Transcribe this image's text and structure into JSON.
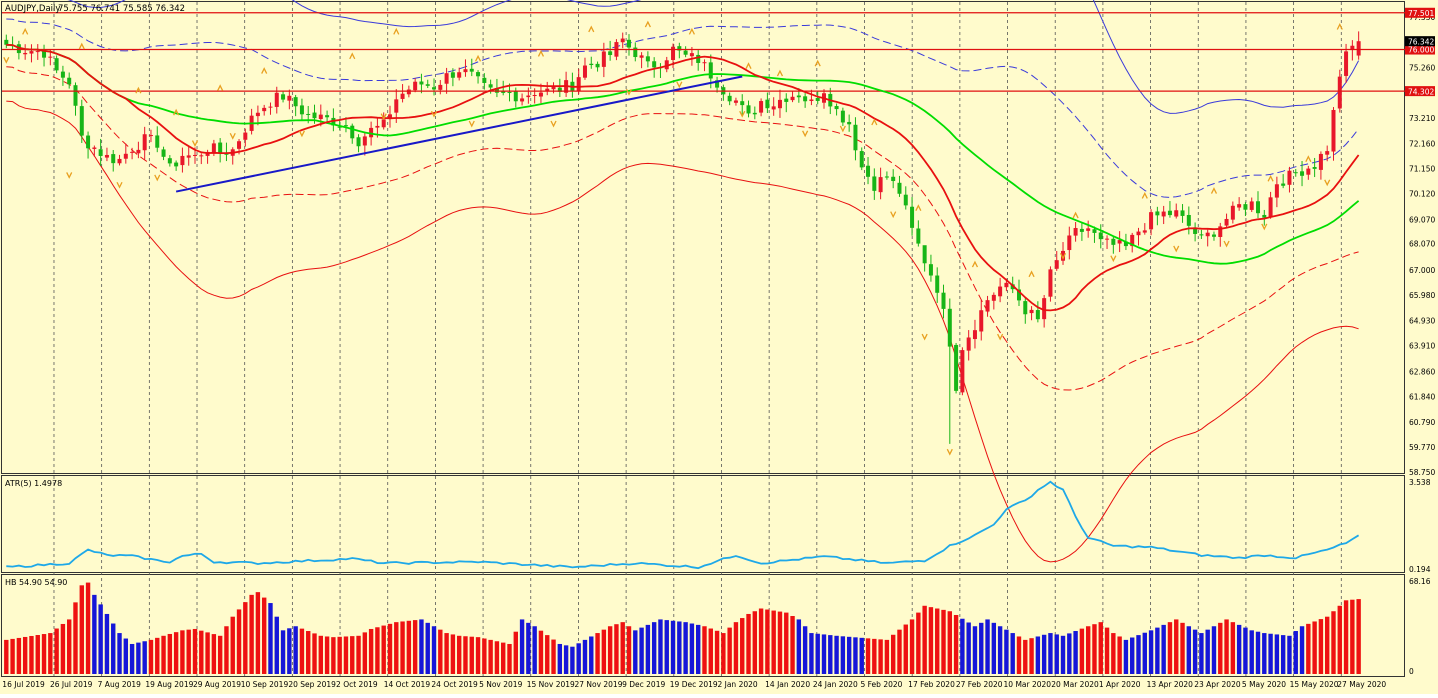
{
  "window": {
    "title": "AUDJPY,Daily",
    "ohlc": "75.755 76.741 75.585 76.342"
  },
  "colors": {
    "background": "#FFFBCC",
    "grid": "#555555",
    "bull_candle": "#E8172A",
    "bear_candle": "#17B517",
    "ma_green": "#00DD00",
    "ma_red": "#E81010",
    "envelope_blue": "#3A3ADA",
    "envelope_red": "#E81010",
    "trendline": "#1818C8",
    "hline": "#E01010",
    "atr_line": "#1EA8E8",
    "hist_red": "#EE1111",
    "hist_blue": "#1616D8",
    "fractal": "#E8A020"
  },
  "price_panel": {
    "ticks": [
      "77.330",
      "76.280",
      "75.260",
      "74.230",
      "73.210",
      "72.160",
      "71.150",
      "70.120",
      "69.070",
      "68.070",
      "67.000",
      "65.980",
      "64.930",
      "63.910",
      "62.860",
      "61.840",
      "60.790",
      "59.770",
      "58.750"
    ],
    "levels": [
      {
        "value": 77.501,
        "label": "77.501"
      },
      {
        "value": 76.0,
        "label": "76.000"
      },
      {
        "value": 74.302,
        "label": "74.302"
      }
    ],
    "current_price": {
      "value": 76.342,
      "label": "76.342"
    }
  },
  "atr_panel": {
    "label": "ATR(5) 1.4978",
    "top_tick": "3.538",
    "bottom_tick": "0.194"
  },
  "hist_panel": {
    "label": "HB 54.90 54.90",
    "top_tick": "68.16",
    "bottom_tick": "0"
  },
  "dates": [
    "16 Jul 2019",
    "26 Jul 2019",
    "7 Aug 2019",
    "19 Aug 2019",
    "29 Aug 2019",
    "10 Sep 2019",
    "20 Sep 2019",
    "2 Oct 2019",
    "14 Oct 2019",
    "24 Oct 2019",
    "5 Nov 2019",
    "15 Nov 2019",
    "27 Nov 2019",
    "9 Dec 2019",
    "19 Dec 2019",
    "2 Jan 2020",
    "14 Jan 2020",
    "24 Jan 2020",
    "5 Feb 2020",
    "17 Feb 2020",
    "27 Feb 2020",
    "10 Mar 2020",
    "20 Mar 2020",
    "1 Apr 2020",
    "13 Apr 2020",
    "23 Apr 2020",
    "5 May 2020",
    "15 May 2020",
    "27 May 2020"
  ],
  "chart_data": {
    "type": "candlestick",
    "symbol": "AUDJPY",
    "timeframe": "Daily",
    "ylim": [
      58.75,
      77.9
    ],
    "close_anchors": [
      [
        0,
        76.2
      ],
      [
        3,
        76.0
      ],
      [
        6,
        75.9
      ],
      [
        8,
        75.1
      ],
      [
        10,
        74.7
      ],
      [
        12,
        72.4
      ],
      [
        14,
        72.0
      ],
      [
        16,
        71.6
      ],
      [
        18,
        71.5
      ],
      [
        20,
        72.0
      ],
      [
        22,
        72.3
      ],
      [
        24,
        72.2
      ],
      [
        26,
        71.1
      ],
      [
        28,
        71.7
      ],
      [
        30,
        71.6
      ],
      [
        32,
        72.0
      ],
      [
        34,
        71.8
      ],
      [
        36,
        71.9
      ],
      [
        38,
        72.8
      ],
      [
        40,
        73.5
      ],
      [
        42,
        73.9
      ],
      [
        44,
        74.1
      ],
      [
        46,
        73.7
      ],
      [
        48,
        73.3
      ],
      [
        50,
        73.2
      ],
      [
        52,
        73.1
      ],
      [
        54,
        72.9
      ],
      [
        56,
        72.3
      ],
      [
        58,
        72.7
      ],
      [
        60,
        72.9
      ],
      [
        62,
        74.0
      ],
      [
        64,
        74.4
      ],
      [
        66,
        74.6
      ],
      [
        68,
        74.5
      ],
      [
        70,
        74.9
      ],
      [
        72,
        75.2
      ],
      [
        74,
        74.9
      ],
      [
        76,
        74.4
      ],
      [
        78,
        74.1
      ],
      [
        80,
        74.2
      ],
      [
        82,
        74.1
      ],
      [
        84,
        74.3
      ],
      [
        86,
        74.3
      ],
      [
        88,
        74.4
      ],
      [
        90,
        74.6
      ],
      [
        92,
        75.3
      ],
      [
        94,
        75.5
      ],
      [
        96,
        75.8
      ],
      [
        98,
        76.4
      ],
      [
        99,
        76.1
      ],
      [
        100,
        75.9
      ],
      [
        102,
        75.3
      ],
      [
        104,
        75.5
      ],
      [
        106,
        76.0
      ],
      [
        108,
        75.7
      ],
      [
        110,
        75.6
      ],
      [
        112,
        75.0
      ],
      [
        114,
        74.4
      ],
      [
        116,
        73.9
      ],
      [
        118,
        73.2
      ],
      [
        120,
        73.9
      ],
      [
        122,
        73.8
      ],
      [
        124,
        74.1
      ],
      [
        126,
        74.2
      ],
      [
        128,
        73.8
      ],
      [
        130,
        74.4
      ],
      [
        132,
        73.5
      ],
      [
        134,
        73.0
      ],
      [
        136,
        71.2
      ],
      [
        138,
        70.5
      ],
      [
        140,
        70.8
      ],
      [
        142,
        70.2
      ],
      [
        144,
        68.6
      ],
      [
        146,
        67.4
      ],
      [
        148,
        66.3
      ],
      [
        150,
        64.1
      ],
      [
        151,
        62.3
      ],
      [
        152,
        63.9
      ],
      [
        154,
        64.8
      ],
      [
        156,
        65.8
      ],
      [
        158,
        66.3
      ],
      [
        160,
        66.2
      ],
      [
        162,
        65.4
      ],
      [
        164,
        64.9
      ],
      [
        166,
        66.8
      ],
      [
        168,
        67.8
      ],
      [
        170,
        68.5
      ],
      [
        172,
        68.7
      ],
      [
        174,
        68.1
      ],
      [
        176,
        68.0
      ],
      [
        178,
        67.9
      ],
      [
        180,
        68.6
      ],
      [
        182,
        69.1
      ],
      [
        184,
        69.3
      ],
      [
        186,
        69.3
      ],
      [
        188,
        68.8
      ],
      [
        190,
        68.2
      ],
      [
        192,
        68.6
      ],
      [
        194,
        69.1
      ],
      [
        196,
        69.6
      ],
      [
        198,
        69.7
      ],
      [
        200,
        69.3
      ],
      [
        202,
        70.6
      ],
      [
        204,
        70.8
      ],
      [
        206,
        71.1
      ],
      [
        208,
        71.3
      ],
      [
        210,
        72.0
      ],
      [
        211,
        73.4
      ],
      [
        212,
        75.0
      ],
      [
        213,
        75.7
      ],
      [
        214,
        76.1
      ],
      [
        215,
        76.34
      ]
    ],
    "atr": {
      "name": "ATR(5)",
      "last": 1.4978,
      "ylim": [
        0.194,
        3.538
      ],
      "anchors": [
        [
          0,
          0.3
        ],
        [
          10,
          0.45
        ],
        [
          13,
          0.95
        ],
        [
          16,
          0.75
        ],
        [
          20,
          0.72
        ],
        [
          24,
          0.55
        ],
        [
          26,
          0.5
        ],
        [
          28,
          0.72
        ],
        [
          31,
          0.8
        ],
        [
          33,
          0.5
        ],
        [
          40,
          0.45
        ],
        [
          55,
          0.62
        ],
        [
          60,
          0.45
        ],
        [
          75,
          0.5
        ],
        [
          90,
          0.3
        ],
        [
          100,
          0.45
        ],
        [
          110,
          0.3
        ],
        [
          116,
          0.75
        ],
        [
          120,
          0.45
        ],
        [
          130,
          0.7
        ],
        [
          140,
          0.45
        ],
        [
          146,
          0.55
        ],
        [
          150,
          1.1
        ],
        [
          154,
          1.5
        ],
        [
          157,
          1.9
        ],
        [
          159,
          2.5
        ],
        [
          162,
          2.8
        ],
        [
          164,
          3.2
        ],
        [
          166,
          3.5
        ],
        [
          168,
          3.2
        ],
        [
          170,
          2.2
        ],
        [
          172,
          1.4
        ],
        [
          176,
          1.1
        ],
        [
          182,
          1.05
        ],
        [
          190,
          0.75
        ],
        [
          196,
          0.65
        ],
        [
          200,
          0.75
        ],
        [
          205,
          0.65
        ],
        [
          210,
          0.95
        ],
        [
          213,
          1.2
        ],
        [
          215,
          1.4978
        ]
      ]
    },
    "hist": {
      "name": "HB",
      "values_label": "54.90 54.90",
      "last": 54.9,
      "ylim": [
        0,
        68.16
      ],
      "anchors": [
        [
          0,
          25
        ],
        [
          7,
          30
        ],
        [
          10,
          40
        ],
        [
          12,
          65
        ],
        [
          13,
          67
        ],
        [
          14,
          58
        ],
        [
          18,
          30
        ],
        [
          20,
          22
        ],
        [
          23,
          25
        ],
        [
          25,
          28
        ],
        [
          28,
          32
        ],
        [
          30,
          33
        ],
        [
          34,
          28
        ],
        [
          36,
          42
        ],
        [
          39,
          58
        ],
        [
          40,
          60
        ],
        [
          42,
          52
        ],
        [
          44,
          32
        ],
        [
          46,
          35
        ],
        [
          50,
          28
        ],
        [
          52,
          27
        ],
        [
          56,
          28
        ],
        [
          58,
          33
        ],
        [
          62,
          38
        ],
        [
          66,
          40
        ],
        [
          70,
          30
        ],
        [
          72,
          28
        ],
        [
          75,
          27
        ],
        [
          80,
          22
        ],
        [
          82,
          40
        ],
        [
          84,
          35
        ],
        [
          88,
          22
        ],
        [
          90,
          20
        ],
        [
          94,
          30
        ],
        [
          96,
          35
        ],
        [
          98,
          38
        ],
        [
          100,
          32
        ],
        [
          104,
          40
        ],
        [
          108,
          38
        ],
        [
          111,
          35
        ],
        [
          114,
          30
        ],
        [
          116,
          38
        ],
        [
          118,
          44
        ],
        [
          120,
          48
        ],
        [
          124,
          45
        ],
        [
          126,
          40
        ],
        [
          128,
          30
        ],
        [
          132,
          28
        ],
        [
          140,
          25
        ],
        [
          144,
          40
        ],
        [
          146,
          50
        ],
        [
          150,
          46
        ],
        [
          154,
          35
        ],
        [
          156,
          40
        ],
        [
          160,
          30
        ],
        [
          162,
          25
        ],
        [
          166,
          30
        ],
        [
          168,
          28
        ],
        [
          172,
          35
        ],
        [
          174,
          38
        ],
        [
          176,
          30
        ],
        [
          178,
          25
        ],
        [
          182,
          32
        ],
        [
          186,
          40
        ],
        [
          190,
          30
        ],
        [
          192,
          35
        ],
        [
          194,
          40
        ],
        [
          198,
          32
        ],
        [
          200,
          30
        ],
        [
          204,
          28
        ],
        [
          206,
          35
        ],
        [
          210,
          42
        ],
        [
          212,
          50
        ],
        [
          213,
          54
        ],
        [
          215,
          54.9
        ]
      ],
      "blue_ranges": [
        [
          14,
          22
        ],
        [
          42,
          46
        ],
        [
          66,
          68
        ],
        [
          82,
          84
        ],
        [
          88,
          93
        ],
        [
          100,
          110
        ],
        [
          126,
          136
        ],
        [
          152,
          160
        ],
        [
          164,
          170
        ],
        [
          178,
          184
        ],
        [
          188,
          192
        ],
        [
          196,
          206
        ]
      ]
    },
    "fractals_up": [
      [
        3,
        76.7
      ],
      [
        12,
        76.1
      ],
      [
        21,
        74.3
      ],
      [
        27,
        73.4
      ],
      [
        34,
        74.4
      ],
      [
        41,
        75.1
      ],
      [
        55,
        75.7
      ],
      [
        62,
        76.7
      ],
      [
        75,
        75.6
      ],
      [
        85,
        75.8
      ],
      [
        93,
        76.8
      ],
      [
        102,
        77.0
      ],
      [
        109,
        76.7
      ],
      [
        118,
        75.3
      ],
      [
        123,
        75.0
      ],
      [
        129,
        75.4
      ],
      [
        138,
        73.0
      ],
      [
        145,
        69.5
      ],
      [
        154,
        67.2
      ],
      [
        163,
        66.8
      ],
      [
        170,
        69.2
      ],
      [
        181,
        70.0
      ],
      [
        192,
        70.2
      ],
      [
        201,
        70.7
      ],
      [
        207,
        71.5
      ],
      [
        212,
        76.9
      ]
    ],
    "fractals_down": [
      [
        0,
        75.6
      ],
      [
        10,
        70.9
      ],
      [
        18,
        70.5
      ],
      [
        24,
        70.8
      ],
      [
        30,
        72.2
      ],
      [
        36,
        72.5
      ],
      [
        47,
        72.6
      ],
      [
        60,
        73.3
      ],
      [
        68,
        73.4
      ],
      [
        74,
        73.0
      ],
      [
        87,
        73.0
      ],
      [
        99,
        74.3
      ],
      [
        107,
        74.6
      ],
      [
        117,
        73.4
      ],
      [
        127,
        72.6
      ],
      [
        133,
        72.8
      ],
      [
        141,
        69.3
      ],
      [
        146,
        64.3
      ],
      [
        150,
        59.6
      ],
      [
        158,
        64.3
      ],
      [
        168,
        67.6
      ],
      [
        176,
        67.5
      ],
      [
        186,
        67.9
      ],
      [
        194,
        68.1
      ],
      [
        200,
        68.8
      ],
      [
        210,
        70.6
      ]
    ]
  }
}
